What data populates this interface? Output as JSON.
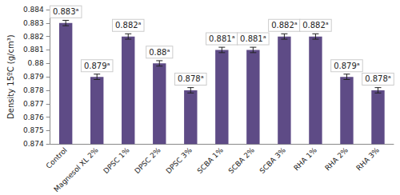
{
  "chart_data": {
    "type": "bar",
    "y_label": "Density 15ºC (g/cm³)",
    "categories": [
      "Control",
      "Magnesol XL 2%",
      "DPSC 1%",
      "DPSC 2%",
      "DPSC 3%",
      "SCBA 1%",
      "SCBA 2%",
      "SCBA 3%",
      "RHA 1%",
      "RHA 2%",
      "RHA 3%"
    ],
    "values": [
      0.883,
      0.879,
      0.882,
      0.88,
      0.878,
      0.881,
      0.881,
      0.882,
      0.882,
      0.879,
      0.878
    ],
    "value_labels": [
      "0.883ᵃ",
      "0.879ᵃ",
      "0.882ᵃ",
      "0.88ᵃ",
      "0.878ᵃ",
      "0.881ᵃ",
      "0.881ᵃ",
      "0.882ᵃ",
      "0.882ᵃ",
      "0.879ᵃ",
      "0.878ᵃ"
    ],
    "errors": [
      0.0002,
      0.0002,
      0.0002,
      0.0002,
      0.0002,
      0.0002,
      0.0002,
      0.0002,
      0.0002,
      0.0002,
      0.0002
    ],
    "color": "#5e4b86",
    "ylim": [
      0.874,
      0.884
    ],
    "yticks": [
      0.874,
      0.875,
      0.876,
      0.877,
      0.878,
      0.879,
      0.88,
      0.881,
      0.882,
      0.883,
      0.884
    ],
    "grid": false,
    "data_labels": true
  }
}
